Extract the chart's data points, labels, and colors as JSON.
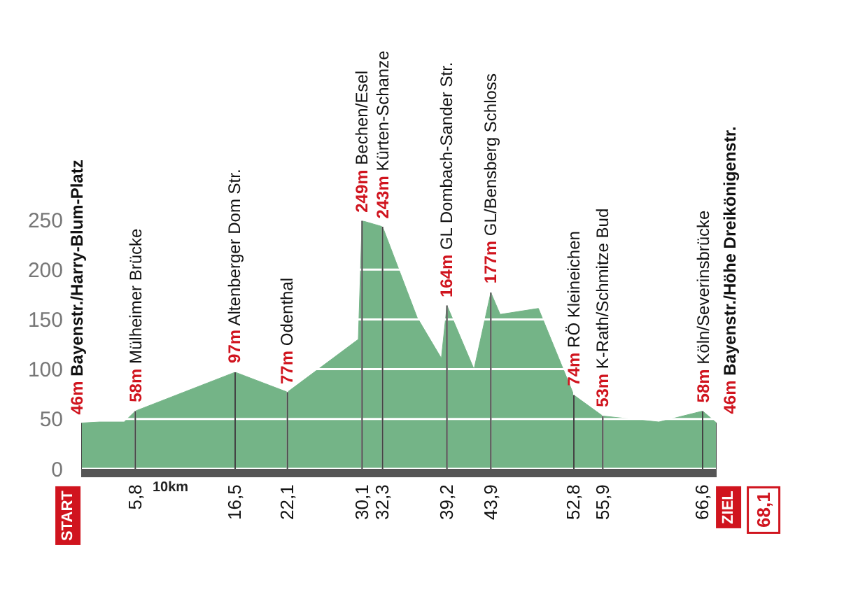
{
  "chart_data": {
    "type": "area",
    "x": [
      0,
      1.95,
      4.6,
      5.8,
      16.5,
      22.1,
      29.7,
      29.95,
      30.1,
      32.3,
      36,
      38.6,
      39.2,
      42.1,
      43.9,
      44.9,
      49,
      52.8,
      55.9,
      61.9,
      66.6,
      68.1
    ],
    "series": [
      {
        "color": "#74b487",
        "values": [
          46,
          47,
          47,
          58,
          97,
          77,
          130,
          204,
          249,
          243,
          152,
          111,
          164,
          100,
          177,
          155,
          161,
          74,
          53,
          47,
          58,
          46
        ]
      }
    ],
    "xlim": [
      0,
      68.1
    ],
    "ylim": [
      0,
      250
    ],
    "xticks": [
      {
        "value": 5.8,
        "label": "5,8"
      },
      {
        "value": 16.5,
        "label": "16,5"
      },
      {
        "value": 22.1,
        "label": "22,1"
      },
      {
        "value": 30.1,
        "label": "30,1"
      },
      {
        "value": 32.3,
        "label": "32,3"
      },
      {
        "value": 39.2,
        "label": "39,2"
      },
      {
        "value": 43.9,
        "label": "43,9"
      },
      {
        "value": 52.8,
        "label": "52,8"
      },
      {
        "value": 55.9,
        "label": "55,9"
      },
      {
        "value": 66.6,
        "label": "66,6"
      }
    ],
    "yticks": [
      0,
      50,
      100,
      150,
      200,
      250
    ],
    "grid": true,
    "annotations": [
      {
        "text": "46m Bayenstr./Harry-Blum-Platz",
        "x": 0,
        "y": 46
      },
      {
        "text": "58m Mülheimer Brücke",
        "x": 5.8,
        "y": 58
      },
      {
        "text": "97m Altenberger Dom Str.",
        "x": 16.5,
        "y": 97
      },
      {
        "text": "77m Odenthal",
        "x": 22.1,
        "y": 77
      },
      {
        "text": "249m Bechen/Esel",
        "x": 30.1,
        "y": 249
      },
      {
        "text": "243m Kürten-Schanze",
        "x": 32.3,
        "y": 243
      },
      {
        "text": "164m GL Dombach-Sander Str.",
        "x": 39.2,
        "y": 164
      },
      {
        "text": "177m GL/Bensberg Schloss",
        "x": 43.9,
        "y": 177
      },
      {
        "text": "74m RÖ Kleineichen",
        "x": 52.8,
        "y": 74
      },
      {
        "text": "53m K-Rath/Schmitze Bud",
        "x": 55.9,
        "y": 53
      },
      {
        "text": "58m Köln/Severinsbrücke",
        "x": 66.6,
        "y": 58
      },
      {
        "text": "46m Bayenstr./Höhe Dreikönigenstr.",
        "x": 68.1,
        "y": 46
      },
      "START",
      "ZIEL",
      "10km",
      "68,1"
    ]
  }
}
